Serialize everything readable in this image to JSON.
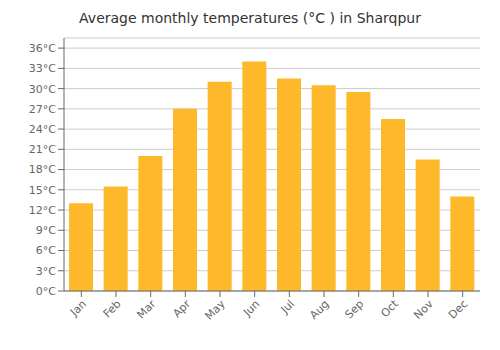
{
  "chart_data": {
    "type": "bar",
    "title": "Average monthly temperatures (°C ) in Sharqpur",
    "categories": [
      "Jan",
      "Feb",
      "Mar",
      "Apr",
      "May",
      "Jun",
      "Jul",
      "Aug",
      "Sep",
      "Oct",
      "Nov",
      "Dec"
    ],
    "values": [
      13,
      15.5,
      20,
      27,
      31,
      34,
      31.5,
      30.5,
      29.5,
      25.5,
      19.5,
      14
    ],
    "color": "#FDB929",
    "ylim": [
      0,
      37.5
    ],
    "yticks": [
      {
        "value": 0,
        "label": "0°C"
      },
      {
        "value": 3,
        "label": "3°C"
      },
      {
        "value": 6,
        "label": "6°C"
      },
      {
        "value": 9,
        "label": "9°C"
      },
      {
        "value": 12,
        "label": "12°C"
      },
      {
        "value": 15,
        "label": "15°C"
      },
      {
        "value": 18,
        "label": "18°C"
      },
      {
        "value": 21,
        "label": "21°C"
      },
      {
        "value": 24,
        "label": "24°C"
      },
      {
        "value": 27,
        "label": "27°C"
      },
      {
        "value": 30,
        "label": "30°C"
      },
      {
        "value": 33,
        "label": "33°C"
      },
      {
        "value": 36,
        "label": "36°C"
      }
    ],
    "grid": true
  }
}
